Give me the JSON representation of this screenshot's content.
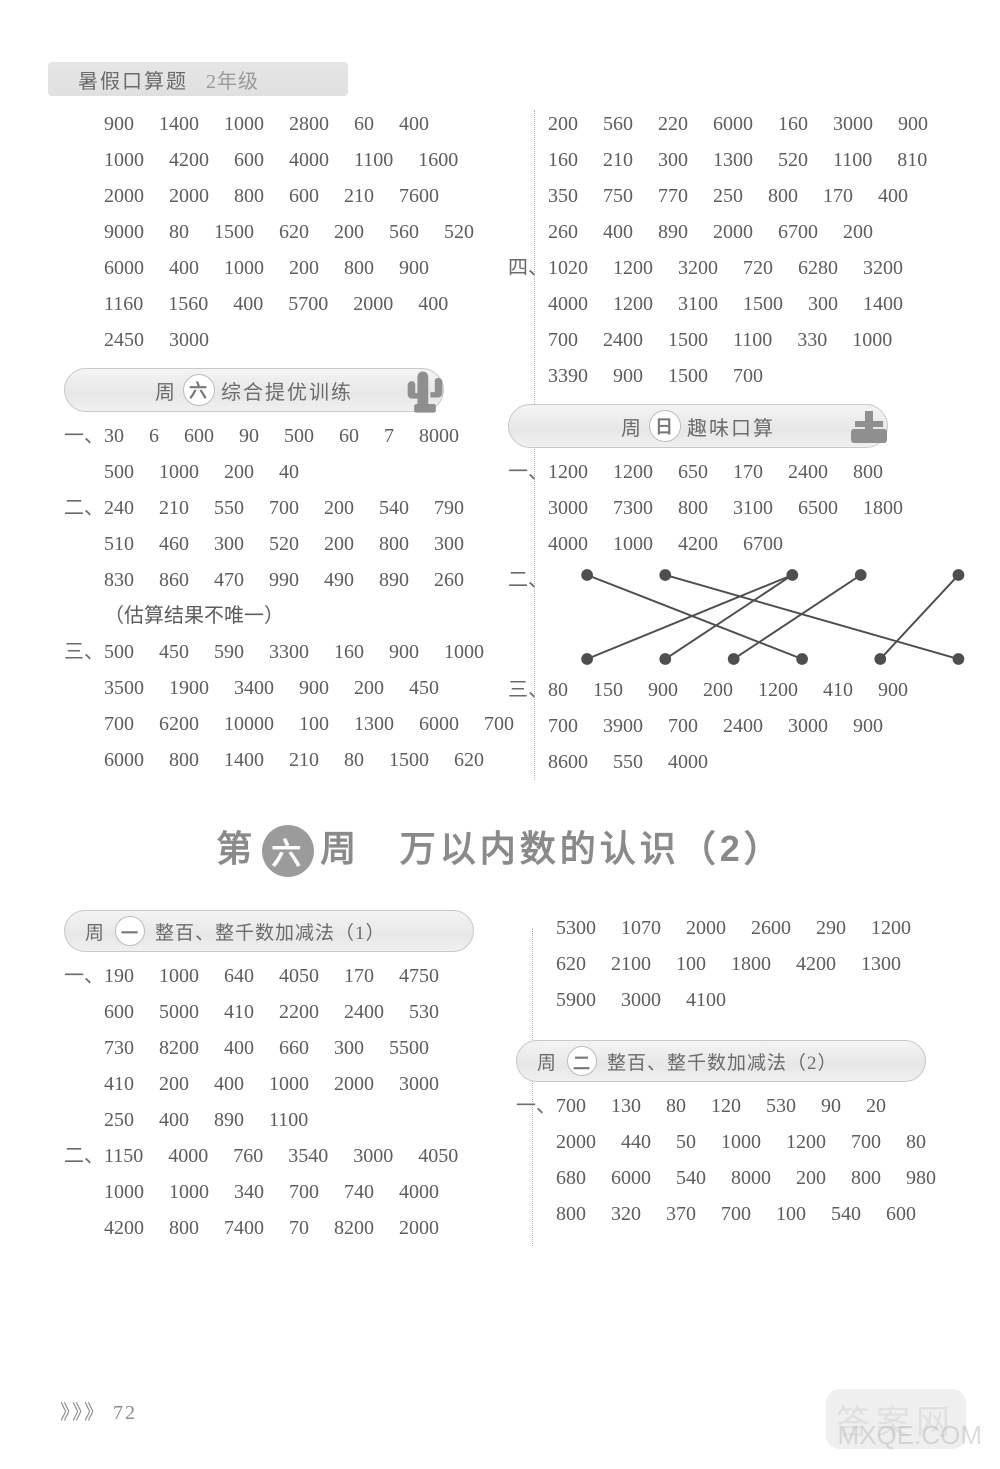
{
  "book_tag": {
    "title": "暑假口算题",
    "grade": "2年级"
  },
  "colors": {
    "text": "#5d5d5d",
    "pill_border": "#c9c9c9",
    "dot": "#4e4e4e"
  },
  "top": {
    "left": {
      "cont_rows": [
        "900 1400 1000 2800 60 400",
        "1000 4200 600 4000 1100 1600",
        "2000 2000 800 600 210 7600",
        "9000 80 1500 620 200 560 520",
        "6000 400 1000 200 800 900",
        "1160 1560 400 5700 2000 400",
        "2450 3000"
      ],
      "pill": {
        "prefix": "周",
        "day": "六",
        "title": "综合提优训练",
        "icon": "cactus"
      },
      "sections": [
        {
          "label": "一、",
          "rows": [
            "30 6 600 90 500 60 7 8000",
            "500 1000 200 40"
          ]
        },
        {
          "label": "二、",
          "rows": [
            "240 210 550 700 200 540 790",
            "510 460 300 520 200 800 300",
            "830 860 470 990 490 890 260"
          ],
          "note": "（估算结果不唯一）"
        },
        {
          "label": "三、",
          "rows": [
            "500 450 590 3300 160 900 1000",
            "3500 1900 3400 900 200 450",
            "700 6200 10000 100 1300 6000 700",
            "6000 800 1400 210 80 1500 620"
          ]
        }
      ]
    },
    "right": {
      "cont_rows": [
        "200 560 220 6000 160 3000 900",
        "160 210 300 1300 520 1100 810",
        "350 750 770 250 800 170 400",
        "260 400 890 2000 6700 200"
      ],
      "sec4": {
        "label": "四、",
        "rows": [
          "1020 1200 3200 720 6280 3200",
          "4000 1200 3100 1500 300 1400",
          "700 2400 1500 1100 330 1000",
          "3390 900 1500 700"
        ]
      },
      "pill": {
        "prefix": "周",
        "day": "日",
        "title": "趣味口算",
        "icon": "fun"
      },
      "sections": [
        {
          "label": "一、",
          "rows": [
            "1200 1200 650 170 2400 800",
            "3000 7300 800 3100 6500 1800",
            "4000 1000 4200 6700"
          ]
        },
        {
          "label": "二、",
          "type": "connections",
          "top_x": [
            40,
            120,
            250,
            320,
            420
          ],
          "bottom_x": [
            40,
            120,
            190,
            260,
            340,
            420
          ],
          "edges": [
            [
              0,
              3
            ],
            [
              1,
              5
            ],
            [
              2,
              0
            ],
            [
              2,
              1
            ],
            [
              3,
              2
            ],
            [
              4,
              4
            ]
          ]
        },
        {
          "label": "三、",
          "rows": [
            "80 150 900 200 1200 410 900",
            "700 3900 700 2400 3000 900",
            "8600 550 4000"
          ]
        }
      ]
    }
  },
  "weekly": {
    "prefix": "第",
    "num": "六",
    "suffix": "周",
    "title": "万以内数的认识（2）"
  },
  "lower": {
    "left": {
      "pill": {
        "prefix": "周",
        "day": "一",
        "title": "整百、整千数加减法（1）"
      },
      "sections": [
        {
          "label": "一、",
          "rows": [
            "190 1000 640 4050 170 4750",
            "600 5000 410 2200 2400 530",
            "730 8200 400 660 300 5500",
            "410 200 400 1000 2000 3000",
            "250 400 890 1100"
          ]
        },
        {
          "label": "二、",
          "rows": [
            "1150 4000 760 3540 3000 4050",
            "1000 1000 340 700 740 4000",
            "4200 800 7400 70 8200 2000"
          ]
        }
      ]
    },
    "right": {
      "cont_rows": [
        "5300 1070 2000 2600 290 1200",
        "620 2100 100 1800 4200 1300",
        "5900 3000 4100"
      ],
      "pill": {
        "prefix": "周",
        "day": "二",
        "title": "整百、整千数加减法（2）"
      },
      "sections": [
        {
          "label": "一、",
          "rows": [
            "700 130 80 120 530 90 20",
            "2000 440 50 1000 1200 700 80",
            "680 6000 540 8000 200 800 980",
            "800 320 370 700 100 540 600"
          ]
        }
      ]
    }
  },
  "page_number": "72",
  "page_arrows": "》》》",
  "watermark": "MXQE.COM",
  "answer_badge": "答案网"
}
